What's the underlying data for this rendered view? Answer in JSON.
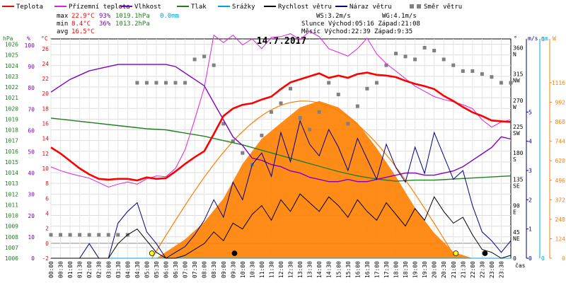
{
  "legend": [
    {
      "label": "Teplota",
      "color": "#ff0000"
    },
    {
      "label": "Přízemní teplota",
      "color": "#e020e0"
    },
    {
      "label": "Vlhkost",
      "color": "#8000c0"
    },
    {
      "label": "Tlak",
      "color": "#208020"
    },
    {
      "label": "Srážky",
      "color": "#00a0e0"
    },
    {
      "label": "Rychlost větru",
      "color": "#000000"
    },
    {
      "label": "Náraz větru",
      "color": "#000080"
    },
    {
      "label": "Směr větru",
      "color": "#808080"
    }
  ],
  "stats": {
    "max": {
      "label": "max",
      "temp": "22.9°C",
      "hum": "93%",
      "press": "1019.1hPa",
      "rain": "0.0mm"
    },
    "min": {
      "label": "min",
      "temp": "8.4°C",
      "hum": "36%",
      "press": "1013.2hPa"
    },
    "avg": {
      "label": "avg",
      "temp": "16.5°C"
    },
    "ws": "WS:3.2m/s",
    "wg": "WG:4.1m/s",
    "sun": "Slunce Východ:05:16  Západ:21:08",
    "moon": "Měsíc  Východ:22:39  Západ:9:35"
  },
  "colors": {
    "temp": "#ff0000",
    "ground": "#e020e0",
    "hum": "#8000c0",
    "press": "#208020",
    "rain": "#00a0e0",
    "wind": "#000000",
    "gust": "#000080",
    "dir": "#808080",
    "solar": "#ff7f00",
    "solar_fill": "#ff7f00"
  },
  "chart_data": {
    "type": "line",
    "title": "14.7.2017",
    "xlabel": "čas",
    "x_ticks": [
      "00:00",
      "00:30",
      "01:00",
      "01:30",
      "02:00",
      "02:30",
      "03:00",
      "03:30",
      "04:00",
      "04:30",
      "05:00",
      "05:30",
      "06:00",
      "06:30",
      "07:00",
      "07:30",
      "08:00",
      "08:30",
      "09:00",
      "09:30",
      "10:00",
      "10:30",
      "11:00",
      "11:30",
      "12:00",
      "12:30",
      "13:00",
      "13:30",
      "14:00",
      "14:30",
      "15:00",
      "15:30",
      "16:00",
      "16:30",
      "17:00",
      "17:30",
      "18:00",
      "18:30",
      "19:00",
      "19:30",
      "20:00",
      "20:30",
      "21:00",
      "21:30",
      "22:00",
      "22:30",
      "23:00",
      "23:30"
    ],
    "axes": {
      "hpa": {
        "label": "hPa",
        "ticks": [
          "1026",
          "1025",
          "1024",
          "1023",
          "1022",
          "1021",
          "1020",
          "1019",
          "1018",
          "1017",
          "1016",
          "1015",
          "1014",
          "1013",
          "1012",
          "1011",
          "1010",
          "1009",
          "1008",
          "1007",
          "1006"
        ],
        "range": [
          1006,
          1026.5
        ]
      },
      "pct": {
        "label": "%",
        "ticks": [
          "100",
          "90",
          "80",
          "70",
          "60",
          "50",
          "40",
          "30",
          "20",
          "10",
          "0"
        ],
        "range": [
          0,
          103
        ]
      },
      "celsius": {
        "label": "°C",
        "ticks": [
          "26",
          "24",
          "22",
          "20",
          "18",
          "16",
          "14",
          "12",
          "10",
          "8",
          "6",
          "4",
          "2",
          "0",
          "-2"
        ],
        "range": [
          -2,
          27.3
        ]
      },
      "dir_deg": {
        "label": "°",
        "ticks": [
          "360",
          "315",
          "270",
          "225",
          "180",
          "135",
          "90",
          "45",
          "0"
        ],
        "compass": [
          "N",
          "NW",
          "W",
          "SW",
          "S",
          "SE",
          "E",
          "NE"
        ],
        "range": [
          0,
          375
        ]
      },
      "ms": {
        "label": "m/s",
        "ticks": [
          "5",
          "4",
          "3",
          "2",
          "1",
          "0"
        ],
        "range": [
          0,
          7.5
        ]
      },
      "mm": {
        "label": "mm",
        "ticks": [
          "1",
          "0"
        ],
        "range": [
          0,
          1
        ]
      },
      "wm2": {
        "label": "W",
        "ticks": [
          "1116",
          "992",
          "868",
          "744",
          "620",
          "496",
          "372",
          "248",
          "124",
          "0"
        ],
        "range": [
          0,
          1395
        ]
      }
    },
    "series": [
      {
        "name": "Teplota",
        "unit": "°C",
        "x": [
          0,
          0.5,
          1,
          1.5,
          2,
          2.5,
          3,
          3.5,
          4,
          4.5,
          5,
          5.5,
          6,
          6.5,
          7,
          7.5,
          8,
          8.5,
          9,
          9.5,
          10,
          10.5,
          11,
          11.5,
          12,
          12.5,
          13,
          13.5,
          14,
          14.5,
          15,
          15.5,
          16,
          16.5,
          17,
          17.5,
          18,
          18.5,
          19,
          19.5,
          20,
          20.5,
          21,
          21.5,
          22,
          22.5,
          23,
          23.5,
          24
        ],
        "y": [
          12.8,
          12.0,
          11.0,
          10.0,
          9.2,
          8.6,
          8.5,
          8.6,
          8.6,
          8.4,
          8.8,
          8.6,
          8.7,
          9.6,
          10.6,
          11.5,
          12.3,
          14.6,
          17.0,
          18.0,
          18.5,
          18.7,
          19.2,
          19.6,
          20.6,
          21.5,
          21.9,
          22.3,
          22.7,
          22.1,
          22.4,
          22.1,
          22.6,
          22.8,
          22.5,
          22.4,
          22.2,
          21.7,
          21.3,
          21.0,
          20.6,
          19.7,
          19.0,
          18.2,
          17.5,
          17.0,
          16.4,
          16.3,
          16.2
        ]
      },
      {
        "name": "Přízemní teplota",
        "unit": "°C",
        "x": [
          0,
          0.5,
          1,
          1.5,
          2,
          2.5,
          3,
          3.5,
          4,
          4.5,
          5,
          5.5,
          6,
          6.5,
          7,
          7.5,
          8,
          8.5,
          9,
          9.5,
          10,
          10.5,
          11,
          11.5,
          12,
          12.5,
          13,
          13.5,
          14,
          14.5,
          15,
          15.5,
          16,
          16.5,
          17,
          17.5,
          18,
          18.5,
          19,
          19.5,
          20,
          20.5,
          21,
          21.5,
          22,
          22.5,
          23,
          23.5,
          24
        ],
        "y": [
          10.2,
          9.7,
          9.3,
          9.0,
          8.7,
          8.1,
          7.5,
          7.9,
          8.2,
          7.9,
          8.6,
          9.0,
          8.9,
          10.0,
          12.5,
          16.5,
          20.8,
          27.8,
          26.8,
          27.8,
          26.5,
          27.3,
          26.0,
          27.5,
          27.6,
          28.0,
          27.2,
          28.3,
          27.6,
          26.0,
          25.5,
          25.0,
          26.0,
          27.4,
          25.3,
          24.0,
          23.0,
          22.0,
          21.0,
          20.3,
          19.6,
          19.2,
          18.9,
          18.5,
          18.0,
          16.5,
          15.5,
          16.2,
          16.5
        ]
      },
      {
        "name": "Vlhkost",
        "unit": "%",
        "x": [
          0,
          0.5,
          1,
          1.5,
          2,
          2.5,
          3,
          3.5,
          4,
          4.5,
          5,
          5.5,
          6,
          6.5,
          7,
          7.5,
          8,
          8.5,
          9,
          9.5,
          10,
          10.5,
          11,
          11.5,
          12,
          12.5,
          13,
          13.5,
          14,
          14.5,
          15,
          15.5,
          16,
          16.5,
          17,
          17.5,
          18,
          18.5,
          19,
          19.5,
          20,
          20.5,
          21,
          21.5,
          22,
          22.5,
          23,
          23.5,
          24
        ],
        "y": [
          78,
          81,
          84,
          86,
          88,
          89,
          90,
          91,
          91,
          91,
          91,
          91,
          91,
          90,
          87,
          84,
          81,
          73,
          65,
          57,
          53,
          47,
          46,
          44,
          43,
          41,
          40,
          38,
          37,
          36,
          36,
          37,
          36,
          36,
          37,
          38,
          39,
          40,
          40,
          39,
          39,
          40,
          41,
          43,
          46,
          49,
          52,
          57,
          56
        ]
      },
      {
        "name": "Tlak",
        "unit": "hPa",
        "x": [
          0,
          1,
          2,
          3,
          4,
          5,
          6,
          7,
          8,
          9,
          10,
          11,
          12,
          13,
          14,
          15,
          16,
          17,
          18,
          19,
          20,
          21,
          22,
          23,
          24
        ],
        "y": [
          1019.1,
          1018.9,
          1018.7,
          1018.5,
          1018.3,
          1018.1,
          1018.0,
          1017.7,
          1017.4,
          1017.0,
          1016.6,
          1016.1,
          1015.6,
          1015.1,
          1014.6,
          1014.1,
          1013.7,
          1013.4,
          1013.2,
          1013.3,
          1013.3,
          1013.4,
          1013.5,
          1013.6,
          1013.7
        ]
      },
      {
        "name": "Srážky",
        "unit": "mm",
        "x": [
          0,
          24
        ],
        "y": [
          0,
          0
        ]
      },
      {
        "name": "Rychlost větru",
        "unit": "m/s",
        "x": [
          0,
          0.5,
          1,
          1.5,
          2,
          2.5,
          3,
          3.5,
          4,
          4.5,
          5,
          5.5,
          6,
          6.5,
          7,
          7.5,
          8,
          8.5,
          9,
          9.5,
          10,
          10.5,
          11,
          11.5,
          12,
          12.5,
          13,
          13.5,
          14,
          14.5,
          15,
          15.5,
          16,
          16.5,
          17,
          17.5,
          18,
          18.5,
          19,
          19.5,
          20,
          20.5,
          21,
          21.5,
          22,
          22.5,
          23,
          23.5,
          24
        ],
        "y": [
          0,
          0,
          0,
          0,
          0,
          0,
          0,
          0.5,
          0.8,
          1.0,
          0.6,
          0.2,
          0,
          0,
          0.1,
          0.3,
          0.5,
          0.9,
          0.6,
          1.2,
          1.0,
          1.5,
          1.8,
          1.3,
          2.0,
          1.6,
          2.2,
          1.9,
          1.6,
          2.1,
          1.8,
          1.4,
          2.0,
          1.6,
          1.3,
          1.9,
          1.5,
          1.1,
          1.7,
          1.3,
          2.1,
          1.6,
          1.2,
          1.4,
          0.8,
          0.3,
          0.2,
          0,
          0.1
        ]
      },
      {
        "name": "Náraz větru",
        "unit": "m/s",
        "x": [
          0,
          0.5,
          1,
          1.5,
          2,
          2.5,
          3,
          3.5,
          4,
          4.5,
          5,
          5.5,
          6,
          6.5,
          7,
          7.5,
          8,
          8.5,
          9,
          9.5,
          10,
          10.5,
          11,
          11.5,
          12,
          12.5,
          13,
          13.5,
          14,
          14.5,
          15,
          15.5,
          16,
          16.5,
          17,
          17.5,
          18,
          18.5,
          19,
          19.5,
          20,
          20.5,
          21,
          21.5,
          22,
          22.5,
          23,
          23.5,
          24
        ],
        "y": [
          0,
          0,
          0,
          0,
          0.5,
          0,
          0,
          1.2,
          1.6,
          1.9,
          0.9,
          0.5,
          0,
          0.2,
          0.4,
          0.8,
          1.3,
          2.0,
          1.4,
          2.6,
          2.0,
          3.2,
          3.6,
          2.8,
          4.3,
          3.3,
          4.7,
          3.9,
          3.5,
          4.4,
          3.8,
          3.0,
          4.1,
          3.4,
          2.7,
          3.9,
          3.1,
          2.6,
          3.8,
          2.9,
          4.3,
          3.5,
          2.7,
          3.0,
          1.8,
          0.9,
          0.6,
          0.2,
          0.6
        ]
      },
      {
        "name": "Směr větru",
        "unit": "°",
        "x": [
          0,
          0.5,
          1,
          1.5,
          2,
          2.5,
          3,
          3.5,
          4,
          4.5,
          5,
          5.5,
          6,
          6.5,
          7,
          7.5,
          8,
          8.5,
          9,
          9.5,
          10,
          10.5,
          11,
          11.5,
          12,
          12.5,
          13,
          13.5,
          14,
          14.5,
          15,
          15.5,
          16,
          16.5,
          17,
          17.5,
          18,
          18.5,
          19,
          19.5,
          20,
          20.5,
          21,
          21.5,
          22,
          22.5,
          23,
          23.5,
          24
        ],
        "y": [
          40,
          40,
          40,
          40,
          40,
          40,
          40,
          40,
          40,
          300,
          300,
          300,
          300,
          300,
          300,
          340,
          345,
          330,
          230,
          200,
          180,
          160,
          210,
          250,
          265,
          290,
          240,
          220,
          250,
          300,
          280,
          230,
          260,
          290,
          300,
          330,
          350,
          345,
          340,
          360,
          355,
          340,
          330,
          320,
          320,
          315,
          310,
          300,
          300
        ]
      },
      {
        "name": "Solar",
        "unit": "W",
        "x": [
          0,
          5.5,
          6,
          7,
          8,
          9,
          10,
          11,
          12,
          13,
          14,
          15,
          16,
          17,
          18,
          19,
          20,
          21,
          22,
          24
        ],
        "y": [
          0,
          0,
          40,
          120,
          230,
          380,
          600,
          760,
          860,
          960,
          1000,
          960,
          860,
          700,
          520,
          320,
          160,
          40,
          0,
          0
        ]
      }
    ],
    "markers": [
      {
        "label": "sunrise",
        "x": 5.27,
        "color": "#ffff00"
      },
      {
        "label": "sunset",
        "x": 21.13,
        "color": "#ffff00"
      },
      {
        "label": "moonset",
        "x": 9.58,
        "color": "#000000"
      },
      {
        "label": "moonrise",
        "x": 22.65,
        "color": "#000000"
      }
    ]
  }
}
